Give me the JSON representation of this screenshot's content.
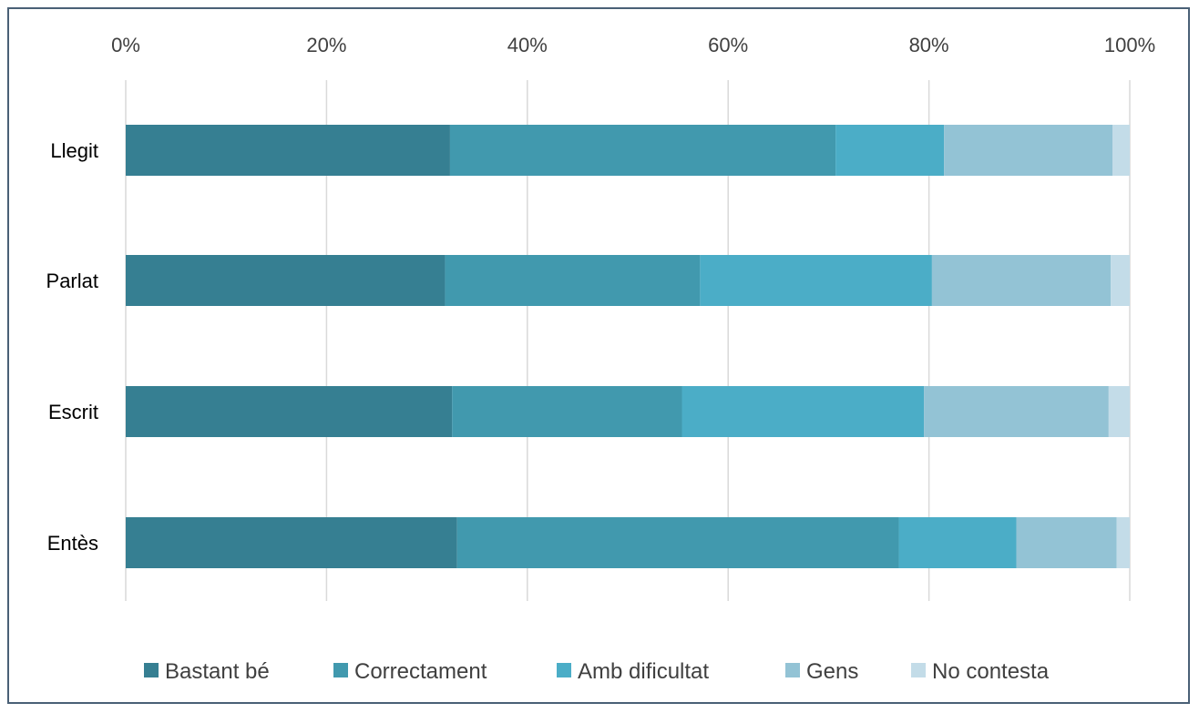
{
  "chart_data": {
    "type": "bar",
    "orientation": "horizontal",
    "stacked": "100%",
    "categories": [
      "Llegit",
      "Parlat",
      "Escrit",
      "Entès"
    ],
    "x_ticks": [
      "0%",
      "20%",
      "40%",
      "60%",
      "80%",
      "100%"
    ],
    "xlim": [
      0,
      100
    ],
    "x_axis_position": "top",
    "grid": true,
    "legend_position": "bottom",
    "series": [
      {
        "name": "Bastant bé",
        "color": "#367f92",
        "values": [
          32.3,
          31.8,
          32.5,
          33.0
        ]
      },
      {
        "name": "Correctament",
        "color": "#4199ae",
        "values": [
          38.4,
          25.4,
          22.9,
          44.0
        ]
      },
      {
        "name": "Amb dificultat",
        "color": "#4badc7",
        "values": [
          10.8,
          23.1,
          24.1,
          11.7
        ]
      },
      {
        "name": "Gens",
        "color": "#93c3d5",
        "values": [
          16.8,
          17.8,
          18.4,
          10.0
        ]
      },
      {
        "name": "No contesta",
        "color": "#c3dce8",
        "values": [
          1.7,
          1.9,
          2.1,
          1.3
        ]
      }
    ]
  }
}
